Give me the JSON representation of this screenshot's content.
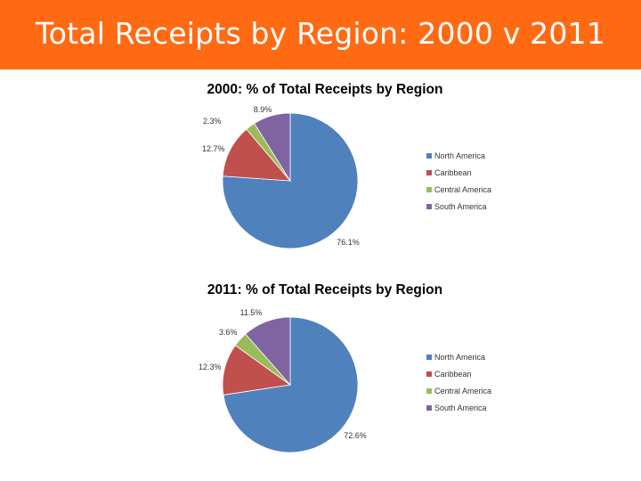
{
  "slide": {
    "title": "Total Receipts by Region: 2000 v 2011"
  },
  "colors": {
    "header_bg": "#ff6a13",
    "north_america": "#4f81bd",
    "caribbean": "#c0504d",
    "central_america": "#9bbb59",
    "south_america": "#8064a2"
  },
  "chart_data": [
    {
      "type": "pie",
      "title": "2000: % of Total Receipts by Region",
      "categories": [
        "North America",
        "Caribbean",
        "Central America",
        "South America"
      ],
      "values": [
        76.1,
        12.7,
        2.3,
        8.9
      ],
      "data_labels": [
        "76.1%",
        "12.7%",
        "2.3%",
        "8.9%"
      ],
      "legend": "right",
      "start": "12 o'clock, clockwise"
    },
    {
      "type": "pie",
      "title": "2011: % of Total Receipts by Region",
      "categories": [
        "North America",
        "Caribbean",
        "Central America",
        "South America"
      ],
      "values": [
        72.6,
        12.3,
        3.6,
        11.5
      ],
      "data_labels": [
        "72.6%",
        "12.3%",
        "3.6%",
        "11.5%"
      ],
      "legend": "right",
      "start": "12 o'clock, clockwise"
    }
  ]
}
